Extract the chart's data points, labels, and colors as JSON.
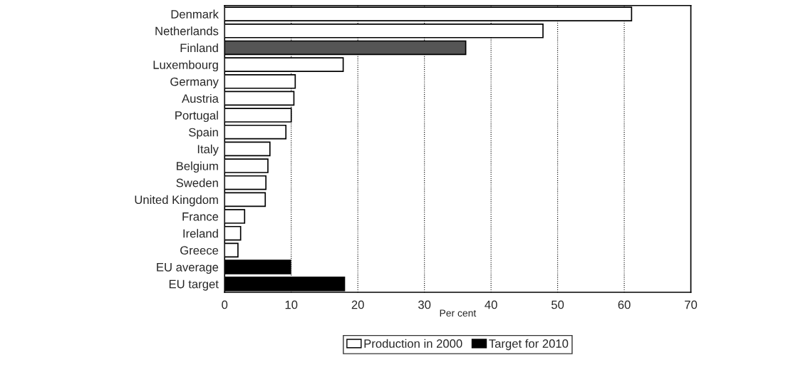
{
  "chart_data": {
    "type": "bar",
    "orientation": "horizontal",
    "xlabel": "Per cent",
    "categories": [
      "Denmark",
      "Netherlands",
      "Finland",
      "Luxembourg",
      "Germany",
      "Austria",
      "Portugal",
      "Spain",
      "Italy",
      "Belgium",
      "Sweden",
      "United Kingdom",
      "France",
      "Ireland",
      "Greece",
      "EU average",
      "EU target"
    ],
    "series": [
      {
        "name": "Production in 2000",
        "color": "#ffffff",
        "colors": [
          "#ffffff",
          "#ffffff",
          "#555555",
          "#ffffff",
          "#ffffff",
          "#ffffff",
          "#ffffff",
          "#ffffff",
          "#ffffff",
          "#ffffff",
          "#ffffff",
          "#ffffff",
          "#ffffff",
          "#ffffff",
          "#ffffff",
          "#000000",
          "#000000"
        ],
        "values": [
          61.1,
          47.8,
          36.2,
          17.8,
          10.6,
          10.4,
          10.0,
          9.2,
          6.8,
          6.5,
          6.2,
          6.1,
          3.0,
          2.4,
          2.0,
          9.9,
          null
        ]
      },
      {
        "name": "Target for 2010",
        "color": "#000000",
        "values": [
          null,
          null,
          null,
          null,
          null,
          null,
          null,
          null,
          null,
          null,
          null,
          null,
          null,
          null,
          null,
          null,
          18.0
        ]
      }
    ],
    "xlim": [
      0,
      70
    ],
    "xticks": [
      0,
      10,
      20,
      30,
      40,
      50,
      60,
      70
    ],
    "grid": "x",
    "legend": "bottom"
  }
}
